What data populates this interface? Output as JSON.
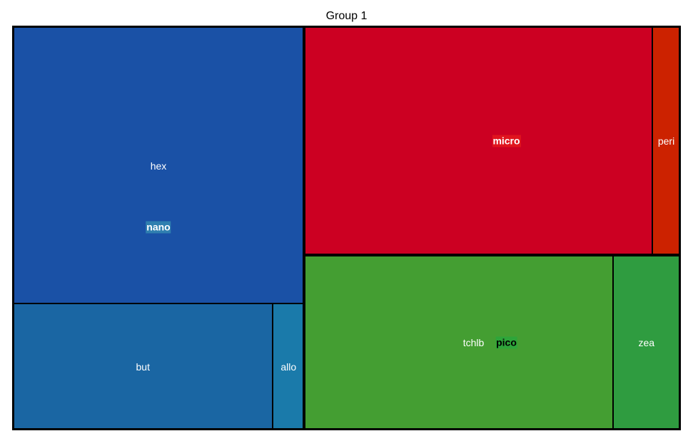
{
  "chart_data": {
    "type": "treemap",
    "title": "Group 1",
    "groups": [
      {
        "name": "nano",
        "label_bg": "#2f7fb0",
        "label_color": "#ffffff",
        "children": [
          {
            "name": "hex",
            "value": 165,
            "color": "#1a51a6"
          },
          {
            "name": "but",
            "value": 67,
            "color": "#1a66a3"
          },
          {
            "name": "allo",
            "value": 8,
            "color": "#1a7aaa"
          }
        ]
      },
      {
        "name": "micro",
        "label_bg": "#e0141e",
        "label_color": "#ffffff",
        "children": [
          {
            "name": "micro",
            "value": 163,
            "color": "#cc0022",
            "hide_label": true
          },
          {
            "name": "peri",
            "value": 13,
            "color": "#cc2200"
          }
        ]
      },
      {
        "name": "pico",
        "label_bg": "#2ea53a",
        "label_color": "#000000",
        "children": [
          {
            "name": "tchlb",
            "value": 110,
            "color": "#449e32"
          },
          {
            "name": "zea",
            "value": 24,
            "color": "#2f9c40"
          }
        ]
      }
    ]
  }
}
